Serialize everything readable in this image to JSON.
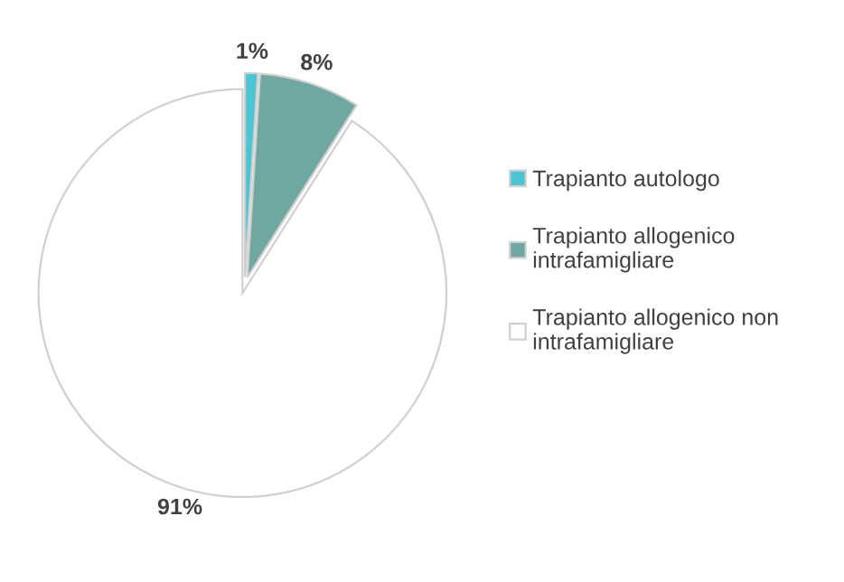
{
  "chart_data": {
    "type": "pie",
    "categories": [
      "Trapianto autologo",
      "Trapianto allogenico\nintrafamigliare",
      "Trapianto allogenico non\nintrafamigliare"
    ],
    "values": [
      1,
      8,
      91
    ],
    "colors": [
      "#4bc4d4",
      "#6fa8a0",
      "#ffffff"
    ],
    "value_labels": [
      "1%",
      "8%",
      "91%"
    ],
    "legend": "right"
  }
}
